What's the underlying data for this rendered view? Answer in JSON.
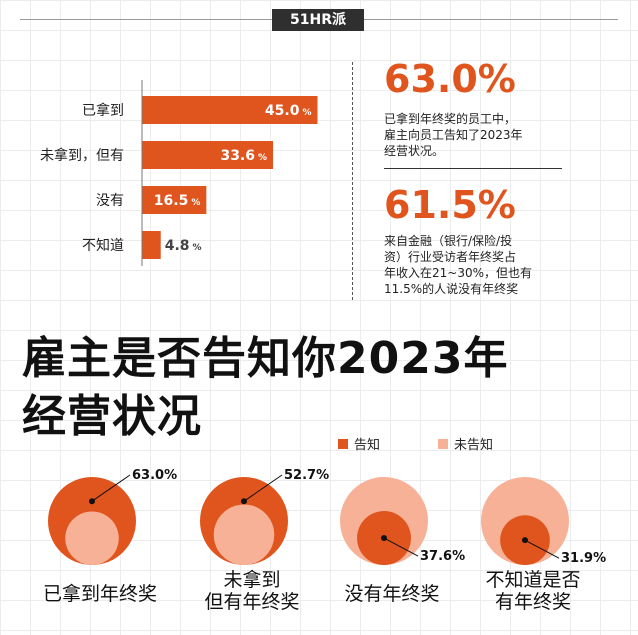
{
  "brand": "51HR派",
  "colors": {
    "accent": "#e0551e",
    "light": "#f6b196",
    "axis": "#777777"
  },
  "bar_chart": {
    "categories": [
      "已拿到",
      "未拿到，但有",
      "没有",
      "不知道"
    ],
    "values": [
      45.0,
      33.6,
      16.5,
      4.8
    ],
    "value_labels": [
      "45.0",
      "33.6",
      "16.5",
      "4.8"
    ],
    "unit": "%"
  },
  "stats": [
    {
      "value": "63.0%",
      "text": [
        "已拿到年终奖的员工中，",
        "雇主向员工告知了2023年",
        "经营状况。"
      ]
    },
    {
      "value": "61.5%",
      "text": [
        "来自金融（银行/保险/投",
        "资）行业受访者年终奖占",
        "年收入在21~30%，但也有",
        "11.5%的人说没有年终奖"
      ]
    }
  ],
  "headline": [
    "雇主是否告知你2023年",
    "经营状况"
  ],
  "legend": [
    {
      "label": "告知",
      "color": "#e0551e"
    },
    {
      "label": "未告知",
      "color": "#f6b196"
    }
  ],
  "chart_data": [
    {
      "type": "bar",
      "categories": [
        "已拿到",
        "未拿到，但有",
        "没有",
        "不知道"
      ],
      "values": [
        45.0,
        33.6,
        16.5,
        4.8
      ],
      "unit": "%"
    },
    {
      "type": "pie",
      "series": [
        {
          "name": "告知",
          "values": [
            63.0,
            52.7,
            37.6,
            31.9
          ]
        },
        {
          "name": "未告知",
          "values": [
            37.0,
            47.3,
            62.4,
            68.1
          ]
        }
      ],
      "categories": [
        "已拿到年终奖",
        "未拿到但有年终奖",
        "没有年终奖",
        "不知道是否有年终奖"
      ],
      "value_labels": [
        "63.0%",
        "52.7%",
        "37.6%",
        "31.9%"
      ],
      "group_labels": [
        [
          "已拿到年终奖"
        ],
        [
          "未拿到",
          "但有年终奖"
        ],
        [
          "没有年终奖"
        ],
        [
          "不知道是否",
          "有年终奖"
        ]
      ]
    }
  ]
}
